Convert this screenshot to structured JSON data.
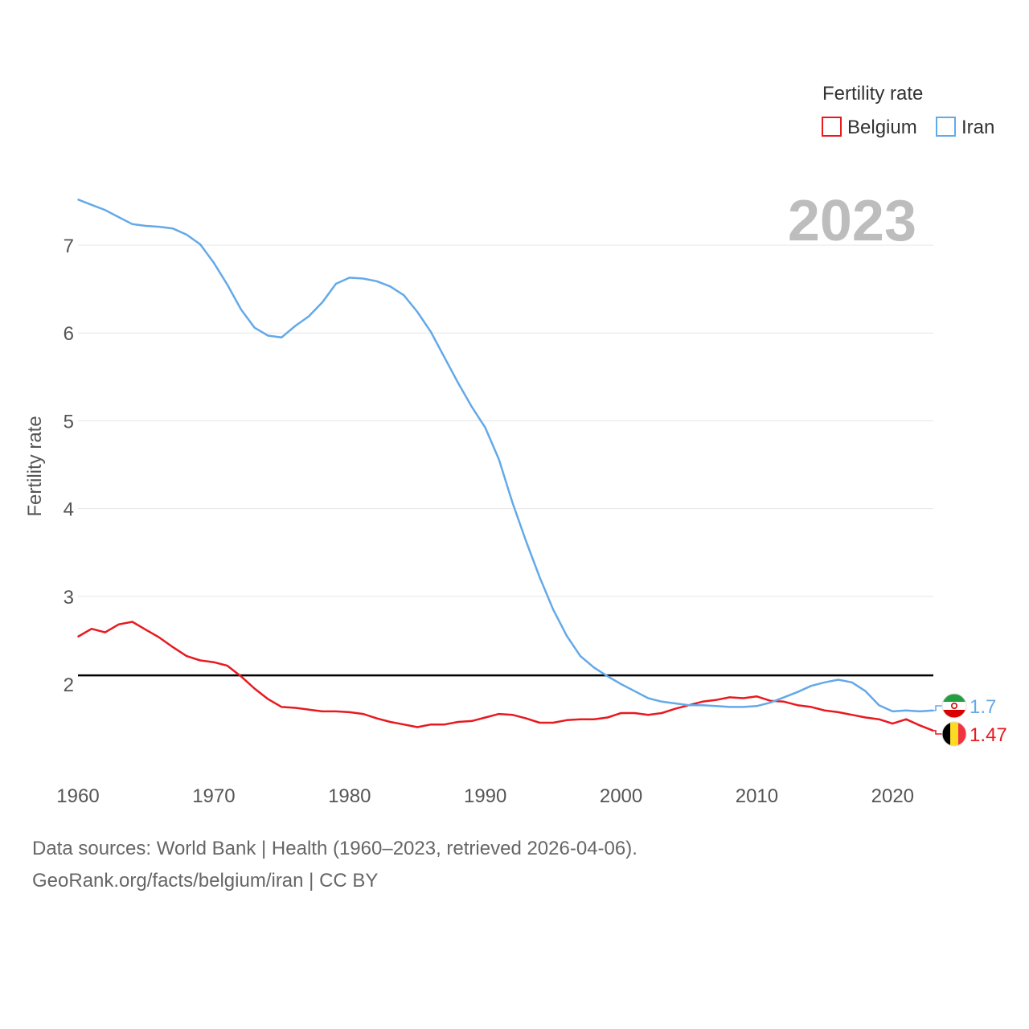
{
  "source_line": "Data sources: World Bank | Health (1960–2023, retrieved 2026-04-06).",
  "credit_line": "GeoRank.org/facts/belgium/iran | CC BY",
  "chart_data": {
    "type": "line",
    "year_label": "2023",
    "ylabel": "Fertility rate",
    "xlabel": "",
    "legend": {
      "title": "Fertility rate",
      "position": "top-right"
    },
    "xlim": [
      1960,
      2023
    ],
    "ylim": [
      1.0,
      7.6
    ],
    "x_ticks": [
      1960,
      1970,
      1980,
      1990,
      2000,
      2010,
      2020
    ],
    "y_ticks": [
      2,
      3,
      4,
      5,
      6,
      7
    ],
    "reference_line": 2.1,
    "x": [
      1960,
      1961,
      1962,
      1963,
      1964,
      1965,
      1966,
      1967,
      1968,
      1969,
      1970,
      1971,
      1972,
      1973,
      1974,
      1975,
      1976,
      1977,
      1978,
      1979,
      1980,
      1981,
      1982,
      1983,
      1984,
      1985,
      1986,
      1987,
      1988,
      1989,
      1990,
      1991,
      1992,
      1993,
      1994,
      1995,
      1996,
      1997,
      1998,
      1999,
      2000,
      2001,
      2002,
      2003,
      2004,
      2005,
      2006,
      2007,
      2008,
      2009,
      2010,
      2011,
      2012,
      2013,
      2014,
      2015,
      2016,
      2017,
      2018,
      2019,
      2020,
      2021,
      2022,
      2023
    ],
    "series": [
      {
        "name": "Belgium",
        "color": "#e8191f",
        "end_label": "1.47",
        "flag": "belgium-flag-icon",
        "values": [
          2.54,
          2.63,
          2.59,
          2.68,
          2.71,
          2.62,
          2.53,
          2.42,
          2.32,
          2.27,
          2.25,
          2.21,
          2.09,
          1.95,
          1.83,
          1.74,
          1.73,
          1.71,
          1.69,
          1.69,
          1.68,
          1.66,
          1.61,
          1.57,
          1.54,
          1.51,
          1.54,
          1.54,
          1.57,
          1.58,
          1.62,
          1.66,
          1.65,
          1.61,
          1.56,
          1.56,
          1.59,
          1.6,
          1.6,
          1.62,
          1.67,
          1.67,
          1.65,
          1.67,
          1.72,
          1.76,
          1.8,
          1.82,
          1.85,
          1.84,
          1.86,
          1.81,
          1.8,
          1.76,
          1.74,
          1.7,
          1.68,
          1.65,
          1.62,
          1.6,
          1.55,
          1.6,
          1.53,
          1.47
        ]
      },
      {
        "name": "Iran",
        "color": "#64a9e8",
        "end_label": "1.7",
        "flag": "iran-flag-icon",
        "values": [
          7.52,
          7.46,
          7.4,
          7.32,
          7.24,
          7.22,
          7.21,
          7.19,
          7.12,
          7.01,
          6.8,
          6.55,
          6.27,
          6.06,
          5.97,
          5.95,
          6.08,
          6.19,
          6.35,
          6.56,
          6.63,
          6.62,
          6.59,
          6.53,
          6.43,
          6.24,
          6.01,
          5.72,
          5.43,
          5.16,
          4.92,
          4.56,
          4.07,
          3.63,
          3.22,
          2.85,
          2.55,
          2.32,
          2.19,
          2.09,
          2.0,
          1.92,
          1.84,
          1.8,
          1.78,
          1.76,
          1.76,
          1.75,
          1.74,
          1.74,
          1.75,
          1.79,
          1.85,
          1.91,
          1.98,
          2.02,
          2.05,
          2.02,
          1.92,
          1.76,
          1.69,
          1.7,
          1.69,
          1.7
        ]
      }
    ]
  }
}
